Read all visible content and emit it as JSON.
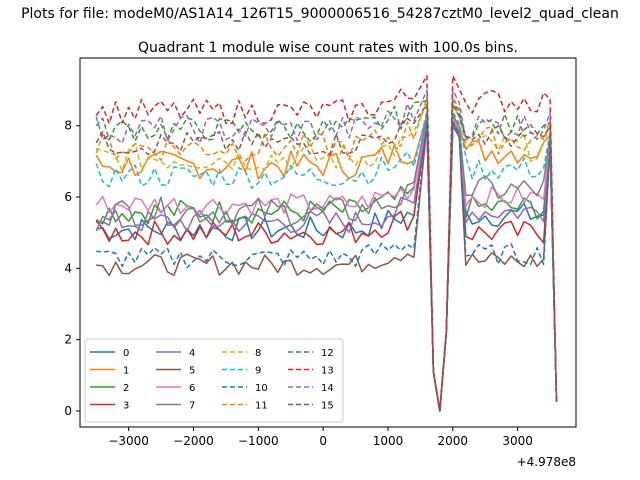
{
  "chart_data": {
    "type": "line",
    "suptitle": "Plots for file: modeM0/AS1A14_126T15_9000006516_54287cztM0_level2_quad_clean",
    "title": "Quadrant 1 module wise count rates with 100.0s bins.",
    "xlabel": "",
    "ylabel": "",
    "x_offset_label": "+4.978e8",
    "xlim": [
      -3750,
      3900
    ],
    "ylim": [
      -0.45,
      9.9
    ],
    "x_ticks": [
      -3000,
      -2000,
      -1000,
      0,
      1000,
      2000,
      3000
    ],
    "x_tick_labels": [
      "−3000",
      "−2000",
      "−1000",
      "0",
      "1000",
      "2000",
      "3000"
    ],
    "y_ticks": [
      0,
      2,
      4,
      6,
      8
    ],
    "y_tick_labels": [
      "0",
      "2",
      "4",
      "6",
      "8"
    ],
    "grid": false,
    "legend_location": "lower-left",
    "legend_columns": 4,
    "x_segments": [
      {
        "start": -3500,
        "step": 100,
        "count": 50
      },
      {
        "start": 1600,
        "step": 100,
        "count": 20
      },
      {
        "start": 3600,
        "step": 100,
        "count": 1
      }
    ],
    "series": [
      {
        "name": "0",
        "color": "#1f77b4",
        "style": "solid",
        "base": 5.1,
        "amp": 0.35,
        "peak": 8.0,
        "tail": 5.5
      },
      {
        "name": "1",
        "color": "#ff7f0e",
        "style": "solid",
        "base": 6.9,
        "amp": 0.4,
        "peak": 8.3,
        "tail": 7.3
      },
      {
        "name": "2",
        "color": "#2ca02c",
        "style": "solid",
        "base": 5.6,
        "amp": 0.35,
        "peak": 8.2,
        "tail": 5.7
      },
      {
        "name": "3",
        "color": "#d62728",
        "style": "solid",
        "base": 5.0,
        "amp": 0.35,
        "peak": 8.1,
        "tail": 5.0
      },
      {
        "name": "4",
        "color": "#9467bd",
        "style": "solid",
        "base": 5.3,
        "amp": 0.35,
        "peak": 8.1,
        "tail": 5.6
      },
      {
        "name": "5",
        "color": "#8c564b",
        "style": "solid",
        "base": 4.1,
        "amp": 0.3,
        "peak": 8.0,
        "tail": 4.2
      },
      {
        "name": "6",
        "color": "#e377c2",
        "style": "solid",
        "base": 5.8,
        "amp": 0.3,
        "peak": 8.2,
        "tail": 6.0
      },
      {
        "name": "7",
        "color": "#7f7f7f",
        "style": "solid",
        "base": 5.6,
        "amp": 0.4,
        "peak": 8.3,
        "tail": 6.2
      },
      {
        "name": "8",
        "color": "#bcbd22",
        "style": "dashed",
        "base": 7.1,
        "amp": 0.4,
        "peak": 8.6,
        "tail": 7.4
      },
      {
        "name": "9",
        "color": "#17becf",
        "style": "dashed",
        "base": 6.6,
        "amp": 0.35,
        "peak": 8.4,
        "tail": 6.8
      },
      {
        "name": "10",
        "color": "#1f77b4",
        "style": "dashed",
        "base": 4.3,
        "amp": 0.3,
        "peak": 8.1,
        "tail": 4.4
      },
      {
        "name": "11",
        "color": "#ff7f0e",
        "style": "dashed",
        "base": 7.4,
        "amp": 0.4,
        "peak": 8.8,
        "tail": 7.6
      },
      {
        "name": "12",
        "color": "#2ca02c",
        "style": "dashed",
        "base": 7.9,
        "amp": 0.35,
        "peak": 8.7,
        "tail": 8.0
      },
      {
        "name": "13",
        "color": "#d62728",
        "style": "dashed",
        "base": 8.4,
        "amp": 0.35,
        "peak": 9.4,
        "tail": 8.7
      },
      {
        "name": "14",
        "color": "#9467bd",
        "style": "dashed",
        "base": 7.9,
        "amp": 0.4,
        "peak": 9.0,
        "tail": 8.0
      },
      {
        "name": "15",
        "color": "#8c564b",
        "style": "dashed",
        "base": 7.5,
        "amp": 0.35,
        "peak": 8.6,
        "tail": 7.7
      }
    ]
  }
}
